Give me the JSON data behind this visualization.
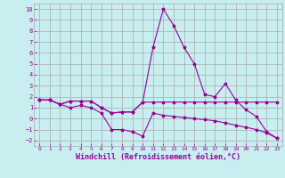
{
  "background_color": "#c8eef0",
  "grid_color": "#aaaaaa",
  "line_color": "#990099",
  "xlim": [
    -0.5,
    23.5
  ],
  "ylim": [
    -2.5,
    10.5
  ],
  "xlabel": "Windchill (Refroidissement éolien,°C)",
  "xlabel_fontsize": 6,
  "yticks": [
    -2,
    -1,
    0,
    1,
    2,
    3,
    4,
    5,
    6,
    7,
    8,
    9,
    10
  ],
  "xticks": [
    0,
    1,
    2,
    3,
    4,
    5,
    6,
    7,
    8,
    9,
    10,
    11,
    12,
    13,
    14,
    15,
    16,
    17,
    18,
    19,
    20,
    21,
    22,
    23
  ],
  "series": [
    {
      "x": [
        0,
        1,
        2,
        3,
        4,
        5,
        6,
        7,
        8,
        9,
        10,
        11,
        12,
        13,
        14,
        15,
        16,
        17,
        18,
        19,
        20,
        21,
        22,
        23
      ],
      "y": [
        1.7,
        1.7,
        1.3,
        1.6,
        1.6,
        1.6,
        1.0,
        0.5,
        0.6,
        0.6,
        1.5,
        1.5,
        1.5,
        1.5,
        1.5,
        1.5,
        1.5,
        1.5,
        1.5,
        1.5,
        1.5,
        1.5,
        1.5,
        1.5
      ]
    },
    {
      "x": [
        0,
        1,
        2,
        3,
        4,
        5,
        6,
        7,
        8,
        9,
        10,
        11,
        12,
        13,
        14,
        15,
        16,
        17,
        18,
        19,
        20,
        21,
        22,
        23
      ],
      "y": [
        1.7,
        1.7,
        1.3,
        1.6,
        1.6,
        1.6,
        1.0,
        0.5,
        0.6,
        0.6,
        1.5,
        6.5,
        10.0,
        8.5,
        6.5,
        5.0,
        2.2,
        2.0,
        3.2,
        1.7,
        0.8,
        0.2,
        -1.2,
        -1.8
      ]
    },
    {
      "x": [
        0,
        1,
        2,
        3,
        4,
        5,
        6,
        7,
        8,
        9,
        10,
        11,
        12,
        13,
        14,
        15,
        16,
        17,
        18,
        19,
        20,
        21,
        22,
        23
      ],
      "y": [
        1.7,
        1.7,
        1.3,
        1.0,
        1.2,
        1.0,
        0.5,
        -1.0,
        -1.0,
        -1.2,
        -1.6,
        0.5,
        0.3,
        0.2,
        0.1,
        0.0,
        -0.1,
        -0.2,
        -0.4,
        -0.6,
        -0.8,
        -1.0,
        -1.3,
        -1.8
      ]
    }
  ]
}
